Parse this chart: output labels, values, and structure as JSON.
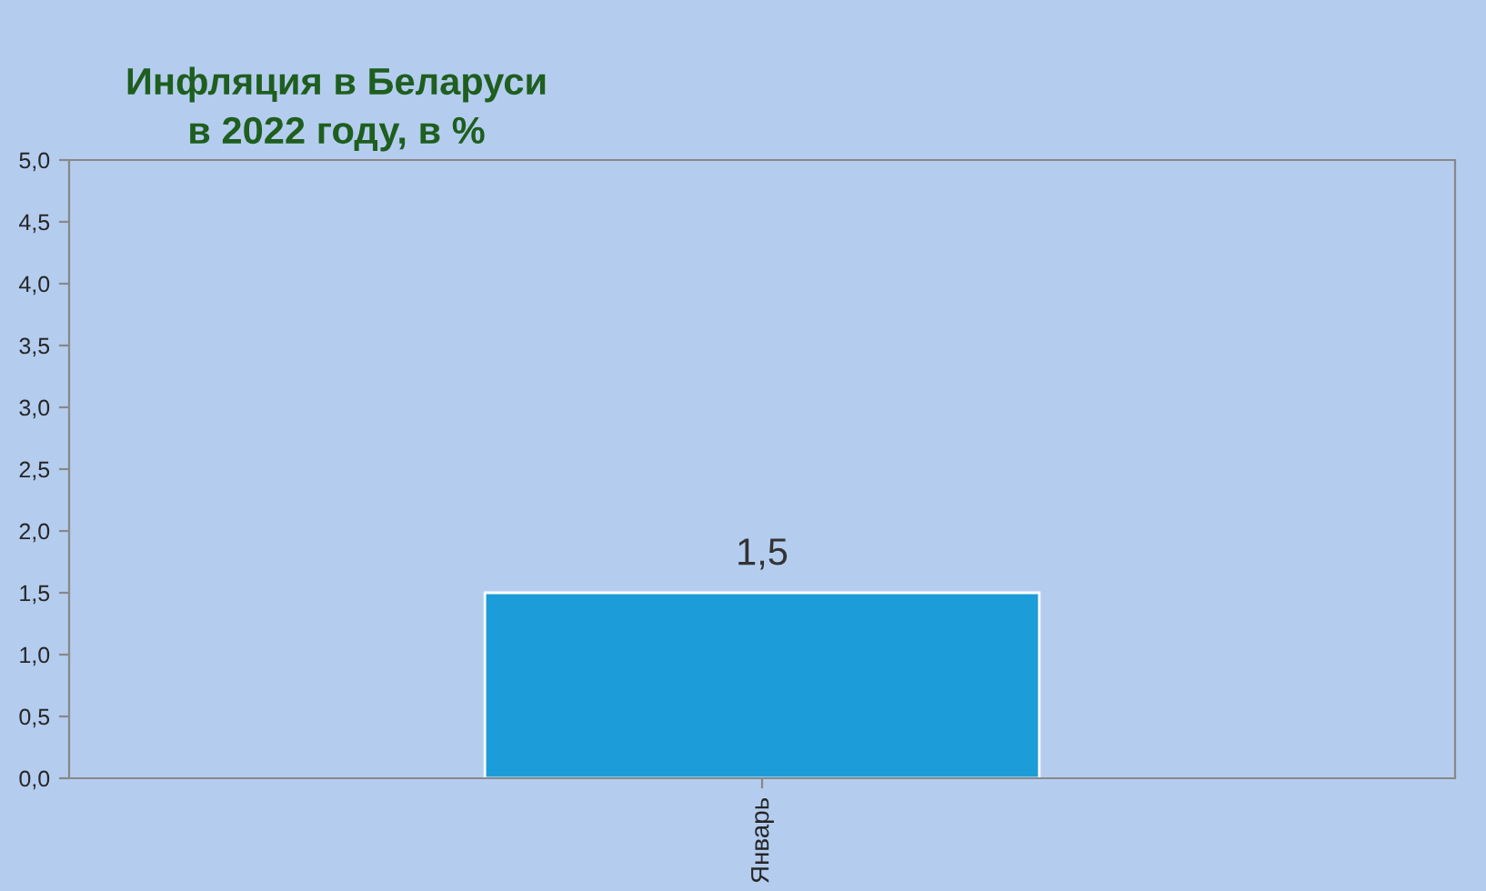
{
  "chart_data": {
    "type": "bar",
    "title": "Инфляция в Беларуси\nв 2022 году, в %",
    "categories": [
      "Январь"
    ],
    "series": [
      {
        "color": "#1c9cd8",
        "values": [
          1.5
        ],
        "value_labels": [
          "1,5"
        ]
      }
    ],
    "ylim": [
      0,
      5
    ],
    "yticks": [
      {
        "value": 0,
        "label": "0,0"
      },
      {
        "value": 0.5,
        "label": "0,5"
      },
      {
        "value": 1,
        "label": "1,0"
      },
      {
        "value": 1.5,
        "label": "1,5"
      },
      {
        "value": 2,
        "label": "2,0"
      },
      {
        "value": 2.5,
        "label": "2,5"
      },
      {
        "value": 3,
        "label": "3,0"
      },
      {
        "value": 3.5,
        "label": "3,5"
      },
      {
        "value": 4,
        "label": "4,0"
      },
      {
        "value": 4.5,
        "label": "4,5"
      },
      {
        "value": 5,
        "label": "5,0"
      }
    ],
    "grid": false,
    "legend": false
  }
}
